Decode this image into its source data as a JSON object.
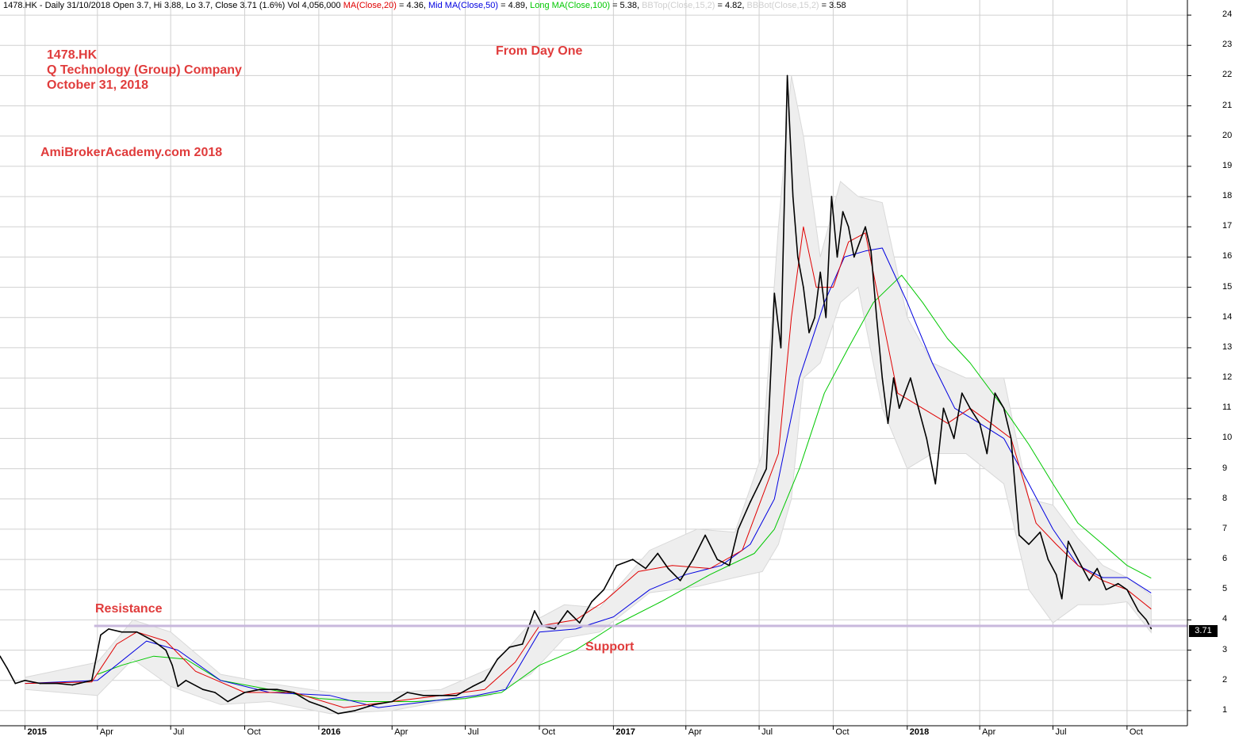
{
  "header": {
    "prefix": "1478.HK - Daily 31/10/2018 Open 3.7, Hi 3.88, Lo 3.7, Close 3.71 (1.6%) Vol 4,056,000",
    "ma20_label": "MA(Close,20)",
    "ma20_value": "= 4.36,",
    "ma50_label": "Mid MA(Close,50)",
    "ma50_value": "= 4.89,",
    "ma100_label": "Long MA(Close,100)",
    "ma100_value": "= 5.38,",
    "bbtop_label": "BBTop(Close,15,2)",
    "bbtop_value": "= 4.82,",
    "bbbot_label": "BBBot(Close,15,2)",
    "bbbot_value": "= 3.58"
  },
  "annotations": {
    "ticker": "1478.HK",
    "company": "Q Technology (Group) Company",
    "date": "October 31, 2018",
    "site": "AmiBrokerAcademy.com  2018",
    "from_day_one": "From Day One",
    "resistance": "Resistance",
    "support": "Support",
    "last_price": "3.71"
  },
  "colors": {
    "price": "#000000",
    "ma20": "#e00000",
    "ma50": "#0000e0",
    "ma100": "#00c800",
    "bollinger_band": "#d9d9d9",
    "horizontal_line": "#c8b8dc",
    "annotation_text": "#e03c3c",
    "grid": "#d0d0d0"
  },
  "chart_data": {
    "type": "line",
    "title": "1478.HK Q Technology (Group) Company",
    "ylim": [
      0.5,
      24.5
    ],
    "yticks": [
      1,
      2,
      3,
      4,
      5,
      6,
      7,
      8,
      9,
      10,
      11,
      12,
      13,
      14,
      15,
      16,
      17,
      18,
      19,
      20,
      21,
      22,
      23,
      24
    ],
    "xlim": [
      "2014-12-01",
      "2018-12-15"
    ],
    "xticks": [
      {
        "date": "2015-01-01",
        "label": "2015",
        "year": true
      },
      {
        "date": "2015-04-01",
        "label": "Apr",
        "year": false
      },
      {
        "date": "2015-07-01",
        "label": "Jul",
        "year": false
      },
      {
        "date": "2015-10-01",
        "label": "Oct",
        "year": false
      },
      {
        "date": "2016-01-01",
        "label": "2016",
        "year": true
      },
      {
        "date": "2016-04-01",
        "label": "Apr",
        "year": false
      },
      {
        "date": "2016-07-01",
        "label": "Jul",
        "year": false
      },
      {
        "date": "2016-10-01",
        "label": "Oct",
        "year": false
      },
      {
        "date": "2017-01-01",
        "label": "2017",
        "year": true
      },
      {
        "date": "2017-04-01",
        "label": "Apr",
        "year": false
      },
      {
        "date": "2017-07-01",
        "label": "Jul",
        "year": false
      },
      {
        "date": "2017-10-01",
        "label": "Oct",
        "year": false
      },
      {
        "date": "2018-01-01",
        "label": "2018",
        "year": true
      },
      {
        "date": "2018-04-01",
        "label": "Apr",
        "year": false
      },
      {
        "date": "2018-07-01",
        "label": "Jul",
        "year": false
      },
      {
        "date": "2018-10-01",
        "label": "Oct",
        "year": false
      }
    ],
    "horizontal_level": 3.8,
    "series": [
      {
        "name": "Close",
        "x": [
          "2014-12-01",
          "2014-12-10",
          "2014-12-20",
          "2015-01-01",
          "2015-01-20",
          "2015-02-10",
          "2015-03-01",
          "2015-03-25",
          "2015-04-05",
          "2015-04-15",
          "2015-05-01",
          "2015-05-20",
          "2015-06-10",
          "2015-06-25",
          "2015-07-03",
          "2015-07-10",
          "2015-07-20",
          "2015-08-10",
          "2015-08-25",
          "2015-09-10",
          "2015-10-01",
          "2015-10-20",
          "2015-11-10",
          "2015-12-01",
          "2015-12-20",
          "2016-01-10",
          "2016-01-25",
          "2016-02-15",
          "2016-03-10",
          "2016-04-01",
          "2016-04-20",
          "2016-05-10",
          "2016-06-01",
          "2016-06-20",
          "2016-07-10",
          "2016-07-25",
          "2016-08-10",
          "2016-08-25",
          "2016-09-10",
          "2016-09-25",
          "2016-10-05",
          "2016-10-20",
          "2016-11-05",
          "2016-11-20",
          "2016-12-05",
          "2016-12-20",
          "2017-01-05",
          "2017-01-25",
          "2017-02-10",
          "2017-02-25",
          "2017-03-10",
          "2017-03-25",
          "2017-04-10",
          "2017-04-25",
          "2017-05-10",
          "2017-05-25",
          "2017-06-05",
          "2017-06-20",
          "2017-07-01",
          "2017-07-10",
          "2017-07-20",
          "2017-07-28",
          "2017-08-05",
          "2017-08-12",
          "2017-08-18",
          "2017-08-25",
          "2017-09-01",
          "2017-09-08",
          "2017-09-15",
          "2017-09-22",
          "2017-09-29",
          "2017-10-06",
          "2017-10-13",
          "2017-10-20",
          "2017-10-27",
          "2017-11-03",
          "2017-11-10",
          "2017-11-17",
          "2017-11-24",
          "2017-12-01",
          "2017-12-08",
          "2017-12-15",
          "2017-12-22",
          "2018-01-05",
          "2018-01-15",
          "2018-01-25",
          "2018-02-05",
          "2018-02-15",
          "2018-02-28",
          "2018-03-10",
          "2018-03-20",
          "2018-04-01",
          "2018-04-10",
          "2018-04-20",
          "2018-05-01",
          "2018-05-10",
          "2018-05-20",
          "2018-06-01",
          "2018-06-15",
          "2018-06-25",
          "2018-07-05",
          "2018-07-12",
          "2018-07-20",
          "2018-08-01",
          "2018-08-15",
          "2018-08-25",
          "2018-09-05",
          "2018-09-20",
          "2018-10-01",
          "2018-10-15",
          "2018-10-25",
          "2018-10-31"
        ],
        "values": [
          2.8,
          2.4,
          1.9,
          2.0,
          1.9,
          1.9,
          1.85,
          2.0,
          3.5,
          3.7,
          3.6,
          3.6,
          3.3,
          3.0,
          2.5,
          1.8,
          2.0,
          1.7,
          1.6,
          1.3,
          1.6,
          1.7,
          1.7,
          1.6,
          1.3,
          1.1,
          0.9,
          1.0,
          1.2,
          1.3,
          1.6,
          1.5,
          1.5,
          1.5,
          1.8,
          2.0,
          2.7,
          3.1,
          3.2,
          4.3,
          3.8,
          3.7,
          4.3,
          3.9,
          4.6,
          5.0,
          5.8,
          6.0,
          5.7,
          6.2,
          5.7,
          5.3,
          6.0,
          6.8,
          6.0,
          5.8,
          7.0,
          7.9,
          8.5,
          9.0,
          14.8,
          13.0,
          22.0,
          18.0,
          16.0,
          15.0,
          13.5,
          14.0,
          15.5,
          14.0,
          18.0,
          16.0,
          17.5,
          17.0,
          16.0,
          16.5,
          17.0,
          16.2,
          14.0,
          12.0,
          10.5,
          12.0,
          11.0,
          12.0,
          11.0,
          10.0,
          8.5,
          11.0,
          10.0,
          11.5,
          11.0,
          10.5,
          9.5,
          11.5,
          11.0,
          10.0,
          6.8,
          6.5,
          6.9,
          6.0,
          5.5,
          4.7,
          6.6,
          6.0,
          5.3,
          5.7,
          5.0,
          5.2,
          5.0,
          4.3,
          4.0,
          3.71
        ]
      },
      {
        "name": "MA(Close,20)",
        "x": [
          "2015-01-01",
          "2015-03-25",
          "2015-04-25",
          "2015-05-20",
          "2015-06-25",
          "2015-08-01",
          "2015-10-01",
          "2015-12-01",
          "2016-02-01",
          "2016-04-01",
          "2016-06-01",
          "2016-07-25",
          "2016-09-01",
          "2016-10-01",
          "2016-11-15",
          "2016-12-20",
          "2017-02-01",
          "2017-03-15",
          "2017-05-01",
          "2017-06-10",
          "2017-07-01",
          "2017-07-25",
          "2017-08-10",
          "2017-08-25",
          "2017-09-10",
          "2017-10-01",
          "2017-10-20",
          "2017-11-10",
          "2017-12-01",
          "2017-12-20",
          "2018-01-20",
          "2018-02-20",
          "2018-03-20",
          "2018-04-15",
          "2018-05-10",
          "2018-06-10",
          "2018-07-05",
          "2018-08-01",
          "2018-09-01",
          "2018-10-01",
          "2018-10-31"
        ],
        "values": [
          1.9,
          1.95,
          3.2,
          3.6,
          3.3,
          2.3,
          1.6,
          1.6,
          1.1,
          1.3,
          1.5,
          1.7,
          2.6,
          3.8,
          4.0,
          4.6,
          5.6,
          5.8,
          5.7,
          6.3,
          7.8,
          9.5,
          14.0,
          17.0,
          15.0,
          15.0,
          16.5,
          16.8,
          14.0,
          11.5,
          11.0,
          10.5,
          11.0,
          10.5,
          10.0,
          7.2,
          6.5,
          5.8,
          5.3,
          5.0,
          4.36
        ]
      },
      {
        "name": "Mid MA(Close,50)",
        "x": [
          "2015-01-01",
          "2015-04-01",
          "2015-06-01",
          "2015-07-10",
          "2015-09-01",
          "2015-11-01",
          "2016-01-15",
          "2016-03-15",
          "2016-05-15",
          "2016-07-15",
          "2016-08-20",
          "2016-10-01",
          "2016-11-15",
          "2017-01-01",
          "2017-02-15",
          "2017-04-01",
          "2017-05-15",
          "2017-06-20",
          "2017-07-20",
          "2017-08-20",
          "2017-09-20",
          "2017-10-15",
          "2017-11-10",
          "2017-12-01",
          "2018-01-01",
          "2018-02-01",
          "2018-03-01",
          "2018-04-01",
          "2018-05-01",
          "2018-06-01",
          "2018-07-01",
          "2018-08-01",
          "2018-09-01",
          "2018-10-01",
          "2018-10-31"
        ],
        "values": [
          1.9,
          2.0,
          3.3,
          3.0,
          2.0,
          1.6,
          1.5,
          1.1,
          1.3,
          1.5,
          1.7,
          3.6,
          3.7,
          4.1,
          5.0,
          5.5,
          5.8,
          6.5,
          8.0,
          12.0,
          14.5,
          16.0,
          16.2,
          16.3,
          14.5,
          12.5,
          11.0,
          10.5,
          10.0,
          8.5,
          7.0,
          5.8,
          5.4,
          5.4,
          4.89
        ]
      },
      {
        "name": "Long MA(Close,100)",
        "x": [
          "2015-04-01",
          "2015-05-01",
          "2015-06-10",
          "2015-07-20",
          "2015-09-01",
          "2015-11-01",
          "2016-01-01",
          "2016-03-01",
          "2016-05-01",
          "2016-07-01",
          "2016-08-15",
          "2016-10-01",
          "2016-11-15",
          "2017-01-01",
          "2017-03-01",
          "2017-05-01",
          "2017-06-25",
          "2017-07-20",
          "2017-08-20",
          "2017-09-20",
          "2017-10-20",
          "2017-11-20",
          "2017-12-25",
          "2018-01-20",
          "2018-02-20",
          "2018-03-20",
          "2018-05-01",
          "2018-06-01",
          "2018-07-01",
          "2018-08-01",
          "2018-09-01",
          "2018-10-01",
          "2018-10-31"
        ],
        "values": [
          2.2,
          2.5,
          2.8,
          2.7,
          2.0,
          1.7,
          1.4,
          1.3,
          1.3,
          1.4,
          1.6,
          2.5,
          3.0,
          3.8,
          4.6,
          5.5,
          6.2,
          7.0,
          9.0,
          11.5,
          13.0,
          14.5,
          15.4,
          14.5,
          13.3,
          12.5,
          11.0,
          9.8,
          8.5,
          7.2,
          6.5,
          5.8,
          5.38
        ]
      },
      {
        "name": "BBTop(Close,15,2)",
        "x": [
          "2015-01-01",
          "2015-04-01",
          "2015-05-15",
          "2015-07-01",
          "2015-09-01",
          "2015-11-01",
          "2016-01-15",
          "2016-04-01",
          "2016-06-01",
          "2016-08-01",
          "2016-09-20",
          "2016-11-01",
          "2016-12-15",
          "2017-02-15",
          "2017-04-15",
          "2017-06-01",
          "2017-07-05",
          "2017-07-25",
          "2017-08-10",
          "2017-08-25",
          "2017-09-15",
          "2017-10-10",
          "2017-11-01",
          "2017-12-01",
          "2018-01-01",
          "2018-02-01",
          "2018-03-15",
          "2018-05-01",
          "2018-06-01",
          "2018-07-01",
          "2018-08-01",
          "2018-09-01",
          "2018-10-01",
          "2018-10-31"
        ],
        "values": [
          2.1,
          2.6,
          4.0,
          3.6,
          2.2,
          1.9,
          1.6,
          1.6,
          1.7,
          2.4,
          3.9,
          4.5,
          4.4,
          6.3,
          7.0,
          6.9,
          9.5,
          17.0,
          22.0,
          20.0,
          16.0,
          18.5,
          18.0,
          17.8,
          14.0,
          12.5,
          12.0,
          12.0,
          8.0,
          7.8,
          6.7,
          5.8,
          5.4,
          4.82
        ]
      },
      {
        "name": "BBBot(Close,15,2)",
        "x": [
          "2015-01-01",
          "2015-04-01",
          "2015-05-15",
          "2015-07-01",
          "2015-09-01",
          "2015-11-01",
          "2016-01-15",
          "2016-04-01",
          "2016-06-01",
          "2016-08-01",
          "2016-09-20",
          "2016-11-01",
          "2016-12-15",
          "2017-02-15",
          "2017-04-15",
          "2017-06-01",
          "2017-07-05",
          "2017-07-25",
          "2017-08-10",
          "2017-08-25",
          "2017-09-15",
          "2017-10-10",
          "2017-11-01",
          "2017-12-01",
          "2018-01-01",
          "2018-02-01",
          "2018-03-15",
          "2018-05-01",
          "2018-06-01",
          "2018-07-01",
          "2018-08-01",
          "2018-09-01",
          "2018-10-01",
          "2018-10-31"
        ],
        "values": [
          1.7,
          1.5,
          2.7,
          1.8,
          1.2,
          1.3,
          0.9,
          1.0,
          1.3,
          1.5,
          2.2,
          3.4,
          3.6,
          4.9,
          5.1,
          5.4,
          5.6,
          6.5,
          8.0,
          12.0,
          12.5,
          14.5,
          15.0,
          11.0,
          9.0,
          9.5,
          9.5,
          8.5,
          5.0,
          3.9,
          4.5,
          4.5,
          4.6,
          3.58
        ]
      }
    ]
  }
}
